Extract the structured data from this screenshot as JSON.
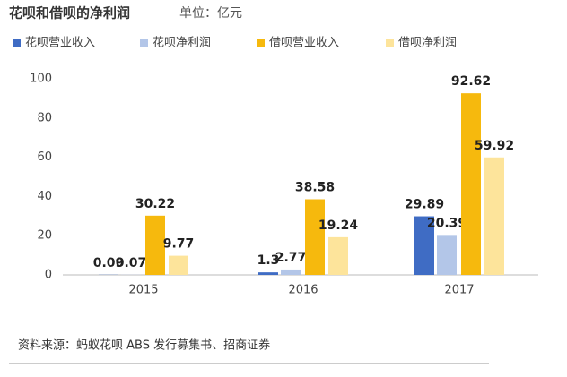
{
  "chart_data": {
    "type": "bar",
    "title": "花呗和借呗的净利润",
    "subtitle": "单位：亿元",
    "categories": [
      "2015",
      "2016",
      "2017"
    ],
    "series": [
      {
        "name": "花呗营业收入",
        "color": "#3f6cc4",
        "values": [
          0.09,
          1.3,
          29.89
        ]
      },
      {
        "name": "花呗净利润",
        "color": "#b3c6e8",
        "values": [
          0.07,
          2.77,
          20.39
        ]
      },
      {
        "name": "借呗营业收入",
        "color": "#f6b90d",
        "values": [
          30.22,
          38.58,
          92.62
        ]
      },
      {
        "name": "借呗净利润",
        "color": "#fde49b",
        "values": [
          9.77,
          19.24,
          59.92
        ]
      }
    ],
    "ylim": [
      0,
      100
    ],
    "yticks": [
      0,
      20,
      40,
      60,
      80,
      100
    ],
    "grid": false,
    "legend": "top",
    "source": "资料来源：蚂蚁花呗 ABS 发行募集书、招商证券"
  }
}
